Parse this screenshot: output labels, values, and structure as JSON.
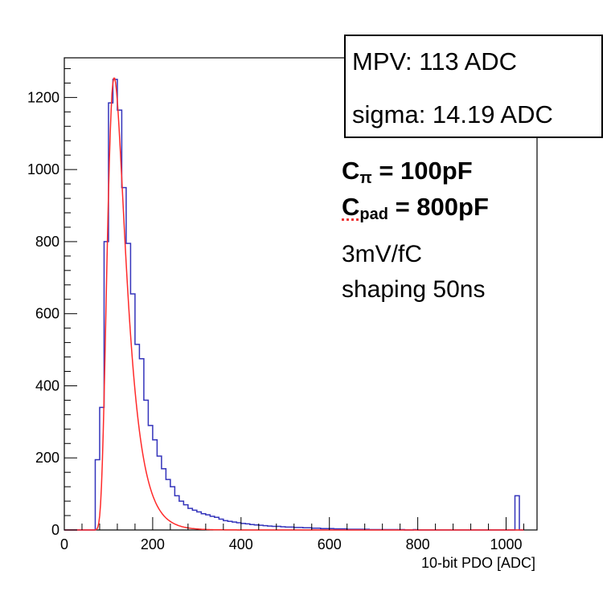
{
  "stats": {
    "mpv": "MPV: 113 ADC",
    "sigma": "sigma: 14.19 ADC"
  },
  "notes": {
    "c_pi_sym": "C",
    "c_pi_sub": "π",
    "c_pi_val": " = 100pF",
    "c_pad_sym": "C",
    "c_pad_sub": "pad",
    "c_pad_val": " = 800pF",
    "gain": "3mV/fC",
    "shaping": "shaping 50ns"
  },
  "colors": {
    "histogram": "#3333bb",
    "fit": "#ff2a2a",
    "frame": "#000000"
  },
  "chart_data": {
    "type": "histogram",
    "xlabel": "10-bit PDO [ADC]",
    "ylabel": "",
    "xlim": [
      0,
      1070
    ],
    "ylim": [
      0,
      1310
    ],
    "xticks": [
      "0",
      "200",
      "400",
      "600",
      "800",
      "1000"
    ],
    "yticks": [
      "0",
      "200",
      "400",
      "600",
      "800",
      "1000",
      "1200"
    ],
    "grid": false,
    "bin_width": 10,
    "histogram": {
      "name": "",
      "bins": [
        [
          0,
          0
        ],
        [
          10,
          0
        ],
        [
          20,
          0
        ],
        [
          30,
          0
        ],
        [
          40,
          0
        ],
        [
          50,
          0
        ],
        [
          60,
          0
        ],
        [
          70,
          195
        ],
        [
          80,
          340
        ],
        [
          90,
          800
        ],
        [
          100,
          1185
        ],
        [
          110,
          1250
        ],
        [
          120,
          1165
        ],
        [
          130,
          950
        ],
        [
          140,
          795
        ],
        [
          150,
          655
        ],
        [
          160,
          515
        ],
        [
          170,
          475
        ],
        [
          180,
          360
        ],
        [
          190,
          290
        ],
        [
          200,
          250
        ],
        [
          210,
          205
        ],
        [
          220,
          170
        ],
        [
          230,
          140
        ],
        [
          240,
          120
        ],
        [
          250,
          95
        ],
        [
          260,
          80
        ],
        [
          270,
          70
        ],
        [
          280,
          60
        ],
        [
          290,
          55
        ],
        [
          300,
          50
        ],
        [
          310,
          45
        ],
        [
          320,
          42
        ],
        [
          330,
          38
        ],
        [
          340,
          35
        ],
        [
          350,
          30
        ],
        [
          360,
          26
        ],
        [
          370,
          24
        ],
        [
          380,
          22
        ],
        [
          390,
          20
        ],
        [
          400,
          18
        ],
        [
          410,
          17
        ],
        [
          420,
          15
        ],
        [
          430,
          14
        ],
        [
          440,
          13
        ],
        [
          450,
          12
        ],
        [
          460,
          11
        ],
        [
          470,
          10
        ],
        [
          480,
          10
        ],
        [
          490,
          9
        ],
        [
          500,
          8
        ],
        [
          510,
          8
        ],
        [
          520,
          7
        ],
        [
          530,
          7
        ],
        [
          540,
          6
        ],
        [
          550,
          6
        ],
        [
          560,
          5
        ],
        [
          570,
          5
        ],
        [
          580,
          4
        ],
        [
          590,
          4
        ],
        [
          600,
          4
        ],
        [
          610,
          3
        ],
        [
          620,
          3
        ],
        [
          630,
          3
        ],
        [
          640,
          2
        ],
        [
          650,
          2
        ],
        [
          660,
          2
        ],
        [
          670,
          2
        ],
        [
          680,
          2
        ],
        [
          690,
          1
        ],
        [
          700,
          1
        ],
        [
          710,
          1
        ],
        [
          720,
          1
        ],
        [
          730,
          1
        ],
        [
          740,
          1
        ],
        [
          750,
          1
        ],
        [
          760,
          1
        ],
        [
          770,
          0
        ],
        [
          780,
          0
        ],
        [
          790,
          1
        ],
        [
          800,
          0
        ],
        [
          810,
          0
        ],
        [
          820,
          0
        ],
        [
          830,
          0
        ],
        [
          840,
          0
        ],
        [
          850,
          0
        ],
        [
          860,
          0
        ],
        [
          870,
          0
        ],
        [
          880,
          0
        ],
        [
          890,
          0
        ],
        [
          900,
          0
        ],
        [
          910,
          0
        ],
        [
          920,
          0
        ],
        [
          930,
          0
        ],
        [
          940,
          0
        ],
        [
          950,
          0
        ],
        [
          960,
          0
        ],
        [
          970,
          0
        ],
        [
          980,
          0
        ],
        [
          990,
          0
        ],
        [
          1000,
          0
        ],
        [
          1010,
          0
        ],
        [
          1020,
          95
        ],
        [
          1030,
          0
        ]
      ]
    },
    "fit": {
      "name": "",
      "mpv": 113,
      "sigma": 14.19,
      "x_range": [
        0,
        1040
      ],
      "peak": 1255
    }
  }
}
